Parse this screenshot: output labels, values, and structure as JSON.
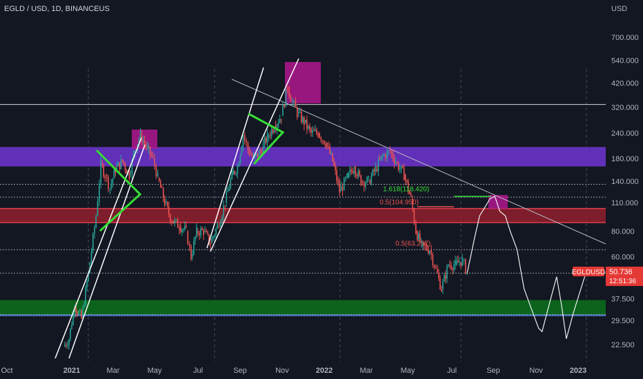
{
  "header": {
    "symbol_title": "EGLD / USD, 1D, BINANCEUS",
    "currency": "USD"
  },
  "price_tag": {
    "ticker": "EGLDUSD",
    "price": "50.736",
    "countdown": "12:51:36"
  },
  "colors": {
    "background": "#131722",
    "axis_text": "#b2b5be",
    "candle_up": "#26a69a",
    "candle_down": "#ef5350",
    "purple_zone": "#6a33c9",
    "red_zone": "#8b1e2c",
    "green_zone": "#0b6b1c",
    "magenta_box": "#b0178f",
    "trend_lines": "#ffffff",
    "triangles": "#35e035"
  },
  "chart_data": {
    "type": "candlestick",
    "title": "EGLD / USD, 1D, BINANCEUS",
    "y_scale": "log",
    "y_ticks": [
      "700.000",
      "540.000",
      "420.000",
      "320.000",
      "240.000",
      "180.000",
      "140.000",
      "110.000",
      "80.000",
      "60.000",
      "37.500",
      "29.500",
      "22.500"
    ],
    "x_ticks": [
      "Oct",
      "2021",
      "Mar",
      "May",
      "Jul",
      "Sep",
      "Nov",
      "2022",
      "Mar",
      "May",
      "Jul",
      "Sep",
      "Nov",
      "2023"
    ],
    "ylim": [
      18,
      900
    ],
    "series": [
      {
        "name": "EGLDUSD",
        "points": [
          [
            "2020-12-20",
            22
          ],
          [
            "2020-12-28",
            24
          ],
          [
            "2021-01-05",
            35
          ],
          [
            "2021-01-15",
            30
          ],
          [
            "2021-01-25",
            50
          ],
          [
            "2021-02-05",
            95
          ],
          [
            "2021-02-12",
            170
          ],
          [
            "2021-02-18",
            150
          ],
          [
            "2021-02-25",
            130
          ],
          [
            "2021-03-05",
            160
          ],
          [
            "2021-03-15",
            175
          ],
          [
            "2021-03-25",
            150
          ],
          [
            "2021-04-02",
            200
          ],
          [
            "2021-04-10",
            235
          ],
          [
            "2021-04-20",
            200
          ],
          [
            "2021-04-28",
            180
          ],
          [
            "2021-05-05",
            145
          ],
          [
            "2021-05-15",
            110
          ],
          [
            "2021-05-25",
            90
          ],
          [
            "2021-06-05",
            85
          ],
          [
            "2021-06-15",
            80
          ],
          [
            "2021-06-22",
            60
          ],
          [
            "2021-06-30",
            80
          ],
          [
            "2021-07-10",
            80
          ],
          [
            "2021-07-20",
            70
          ],
          [
            "2021-07-30",
            85
          ],
          [
            "2021-08-10",
            110
          ],
          [
            "2021-08-20",
            150
          ],
          [
            "2021-08-28",
            165
          ],
          [
            "2021-09-05",
            235
          ],
          [
            "2021-09-12",
            200
          ],
          [
            "2021-09-20",
            180
          ],
          [
            "2021-09-30",
            195
          ],
          [
            "2021-10-10",
            230
          ],
          [
            "2021-10-20",
            260
          ],
          [
            "2021-10-30",
            290
          ],
          [
            "2021-11-08",
            400
          ],
          [
            "2021-11-15",
            340
          ],
          [
            "2021-11-22",
            300
          ],
          [
            "2021-12-02",
            270
          ],
          [
            "2021-12-12",
            240
          ],
          [
            "2021-12-22",
            240
          ],
          [
            "2022-01-02",
            215
          ],
          [
            "2022-01-12",
            175
          ],
          [
            "2022-01-22",
            125
          ],
          [
            "2022-02-02",
            145
          ],
          [
            "2022-02-12",
            165
          ],
          [
            "2022-02-22",
            140
          ],
          [
            "2022-03-05",
            140
          ],
          [
            "2022-03-15",
            160
          ],
          [
            "2022-03-25",
            185
          ],
          [
            "2022-04-05",
            195
          ],
          [
            "2022-04-15",
            170
          ],
          [
            "2022-04-25",
            150
          ],
          [
            "2022-05-05",
            115
          ],
          [
            "2022-05-12",
            80
          ],
          [
            "2022-05-20",
            68
          ],
          [
            "2022-06-01",
            65
          ],
          [
            "2022-06-10",
            52
          ],
          [
            "2022-06-18",
            42
          ],
          [
            "2022-06-28",
            55
          ],
          [
            "2022-07-08",
            55
          ],
          [
            "2022-07-18",
            58
          ],
          [
            "2022-07-25",
            50
          ]
        ]
      },
      {
        "name": "projection",
        "points": [
          [
            "2022-07-25",
            50
          ],
          [
            "2022-08-05",
            75
          ],
          [
            "2022-08-12",
            95
          ],
          [
            "2022-08-20",
            105
          ],
          [
            "2022-08-27",
            115
          ],
          [
            "2022-09-03",
            118
          ],
          [
            "2022-09-10",
            100
          ],
          [
            "2022-09-18",
            95
          ],
          [
            "2022-09-25",
            80
          ],
          [
            "2022-10-05",
            65
          ],
          [
            "2022-10-15",
            42
          ],
          [
            "2022-10-25",
            34
          ],
          [
            "2022-11-05",
            27
          ],
          [
            "2022-11-10",
            26
          ],
          [
            "2022-11-20",
            35
          ],
          [
            "2022-12-01",
            48
          ],
          [
            "2022-12-08",
            35
          ],
          [
            "2022-12-15",
            24
          ],
          [
            "2022-12-25",
            32
          ],
          [
            "2023-01-05",
            42
          ],
          [
            "2023-01-12",
            50
          ]
        ]
      }
    ],
    "horizontal_lines": [
      330,
      135,
      117,
      65,
      50,
      31.5
    ],
    "zones": [
      {
        "name": "purple",
        "from": 165,
        "to": 205
      },
      {
        "name": "red",
        "from": 88,
        "to": 103
      },
      {
        "name": "green",
        "from": 31,
        "to": 37
      }
    ],
    "annotations": [
      {
        "text": "1.618(118.420)",
        "color": "#35e035",
        "date": "2022-04-28",
        "value": 125
      },
      {
        "text": "0.5(104.950)",
        "color": "#ef5350",
        "date": "2022-04-18",
        "value": 108
      },
      {
        "text": "0.5(63.257)",
        "color": "#ef5350",
        "date": "2022-05-08",
        "value": 68
      }
    ],
    "grid": false,
    "legend": "right price tag"
  }
}
